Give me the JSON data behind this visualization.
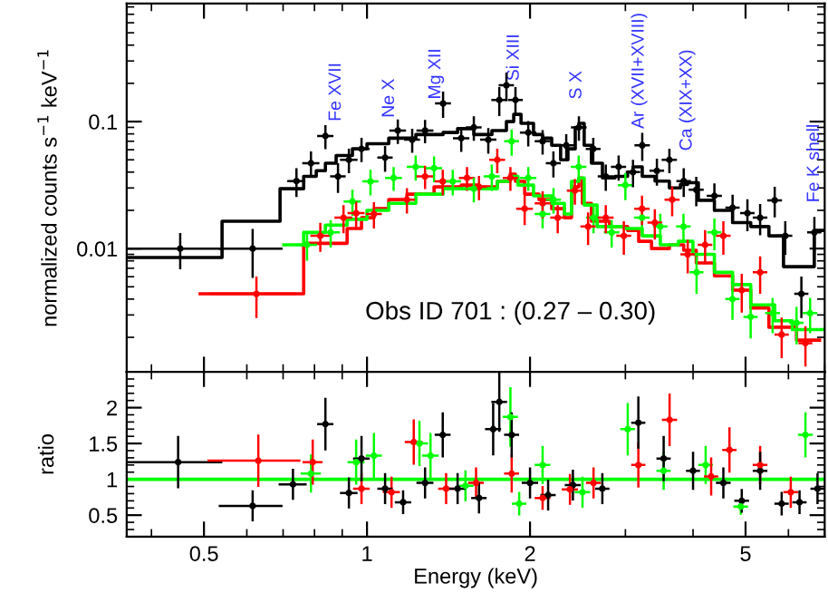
{
  "chart_data": [
    {
      "type": "scatter",
      "ylabel": "normalized counts s$^{−1}$ keV$^{−1}$",
      "log": "xy",
      "xlim": [
        0.36,
        7.0
      ],
      "xticks": [
        0.5,
        1,
        2,
        5
      ],
      "ylim": [
        0.00107,
        0.85
      ],
      "yticks": [
        0.01,
        0.1
      ],
      "tick_labels": "y",
      "marker": "none",
      "annotations": [
        "Fe XVII",
        "Ne X",
        "Mg XII",
        "Si XIII",
        "S X",
        "Ar (XVII+XVIII)",
        "Ca (XIX+XX)",
        "Fe K shell",
        "Obs ID 701 : (0.27 – 0.30)"
      ],
      "series": [
        {
          "type": "step",
          "color": "#000000",
          "x": [
            0.36,
            0.54,
            0.691,
            0.764,
            0.806,
            0.838,
            0.877,
            0.94,
            1.0,
            1.097,
            1.231,
            1.382,
            1.47,
            1.575,
            1.701,
            1.809,
            1.866,
            1.925,
            2.03,
            2.11,
            2.193,
            2.278,
            2.35,
            2.424,
            2.462,
            2.518,
            2.597,
            2.721,
            2.87,
            3.028,
            3.099,
            3.223,
            3.403,
            3.617,
            3.791,
            3.908,
            4.091,
            4.38,
            4.732,
            5.112,
            5.522,
            5.876,
            6.697,
            7.0
          ],
          "values": [
            0.0085,
            0.0164,
            0.0296,
            0.037,
            0.041,
            0.047,
            0.054,
            0.061,
            0.067,
            0.074,
            0.079,
            0.082,
            0.088,
            0.079,
            0.085,
            0.1,
            0.114,
            0.097,
            0.079,
            0.074,
            0.065,
            0.05,
            0.061,
            0.09,
            0.097,
            0.065,
            0.047,
            0.036,
            0.037,
            0.04,
            0.044,
            0.037,
            0.034,
            0.03,
            0.032,
            0.033,
            0.024,
            0.02,
            0.016,
            0.0149,
            0.0126,
            0.0072,
            0.0139,
            0.0139
          ]
        },
        {
          "type": "step",
          "color": "#ff0000",
          "x": [
            0.492,
            0.764,
            0.919,
            0.977,
            1.031,
            1.097,
            1.185,
            1.33,
            1.493,
            1.612,
            1.741,
            1.838,
            1.88,
            1.955,
            2.078,
            2.193,
            2.315,
            2.386,
            2.462,
            2.499,
            2.597,
            2.804,
            3.028,
            3.174,
            3.352,
            3.617,
            3.844,
            4.055,
            4.38,
            4.732,
            5.112,
            5.522,
            6.21,
            6.85
          ],
          "values": [
            0.0044,
            0.011,
            0.0144,
            0.0175,
            0.0206,
            0.0243,
            0.0268,
            0.0306,
            0.0316,
            0.0306,
            0.0338,
            0.0385,
            0.0338,
            0.0268,
            0.0243,
            0.0206,
            0.0175,
            0.0306,
            0.036,
            0.0227,
            0.0164,
            0.0149,
            0.0139,
            0.0114,
            0.01,
            0.0107,
            0.0097,
            0.0077,
            0.0061,
            0.0047,
            0.0034,
            0.0024,
            0.0019,
            0.0019
          ]
        },
        {
          "type": "step",
          "color": "#00ff00",
          "x": [
            0.702,
            0.764,
            0.838,
            0.919,
            1.0,
            1.097,
            1.231,
            1.382,
            1.55,
            1.741,
            1.838,
            1.9,
            2.03,
            2.193,
            2.315,
            2.386,
            2.462,
            2.518,
            2.66,
            2.982,
            3.223,
            3.48,
            3.757,
            3.998,
            4.38,
            4.732,
            5.112,
            5.66,
            6.1,
            7.0
          ],
          "values": [
            0.0107,
            0.0134,
            0.0153,
            0.017,
            0.02,
            0.0227,
            0.0268,
            0.0296,
            0.0296,
            0.0338,
            0.037,
            0.0316,
            0.026,
            0.0227,
            0.0187,
            0.0338,
            0.036,
            0.022,
            0.0149,
            0.0144,
            0.0126,
            0.0107,
            0.0114,
            0.009,
            0.0065,
            0.0052,
            0.0036,
            0.0027,
            0.0023,
            0.0023
          ]
        },
        {
          "color": "#000000",
          "x": [
            0.452,
            0.615,
            0.741,
            0.788,
            0.838,
            0.884,
            0.926,
            0.977,
            1.08,
            1.14,
            1.212,
            1.28,
            1.382,
            1.493,
            1.575,
            1.675,
            1.755,
            1.809,
            1.88,
            1.985,
            2.11,
            2.209,
            2.333,
            2.462,
            2.617,
            2.76,
            2.915,
            3.099,
            3.223,
            3.43,
            3.617,
            3.844,
            4.055,
            4.38,
            4.732,
            5.04,
            5.32,
            5.66,
            5.92,
            6.34,
            6.7
          ],
          "values": [
            0.01,
            0.01,
            0.034,
            0.047,
            0.077,
            0.037,
            0.05,
            0.061,
            0.052,
            0.085,
            0.072,
            0.085,
            0.139,
            0.074,
            0.09,
            0.072,
            0.148,
            0.193,
            0.148,
            0.082,
            0.07,
            0.047,
            0.065,
            0.09,
            0.061,
            0.037,
            0.044,
            0.04,
            0.065,
            0.041,
            0.05,
            0.034,
            0.029,
            0.026,
            0.021,
            0.019,
            0.0175,
            0.024,
            0.0126,
            0.0044,
            0.0134
          ],
          "errors": [
            0.003,
            0.004,
            0.008,
            0.01,
            0.015,
            0.009,
            0.01,
            0.012,
            0.011,
            0.017,
            0.014,
            0.016,
            0.03,
            0.015,
            0.018,
            0.015,
            0.035,
            0.045,
            0.035,
            0.017,
            0.014,
            0.01,
            0.013,
            0.018,
            0.012,
            0.008,
            0.009,
            0.009,
            0.015,
            0.009,
            0.01,
            0.008,
            0.007,
            0.006,
            0.005,
            0.005,
            0.0045,
            0.006,
            0.0035,
            0.0015,
            0.004
          ],
          "xerrors": [
            0.09,
            0.08,
            0.025,
            0.025,
            0.025,
            0.025,
            0.03,
            0.03,
            0.03,
            0.035,
            0.035,
            0.04,
            0.04,
            0.045,
            0.045,
            0.05,
            0.05,
            0.05,
            0.05,
            0.06,
            0.06,
            0.06,
            0.07,
            0.07,
            0.07,
            0.08,
            0.08,
            0.08,
            0.09,
            0.09,
            0.1,
            0.1,
            0.11,
            0.12,
            0.12,
            0.13,
            0.14,
            0.15,
            0.15,
            0.16,
            0.17
          ]
        },
        {
          "color": "#ff0000",
          "x": [
            0.625,
            0.82,
            0.905,
            0.955,
            1.03,
            1.185,
            1.28,
            1.38,
            1.53,
            1.61,
            1.74,
            1.84,
            1.955,
            2.11,
            2.25,
            2.42,
            2.56,
            2.76,
            2.98,
            3.22,
            3.4,
            3.66,
            3.91,
            4.21,
            4.55,
            4.92,
            5.32,
            5.83,
            6.45
          ],
          "values": [
            0.0044,
            0.0126,
            0.0175,
            0.019,
            0.0187,
            0.0243,
            0.037,
            0.0338,
            0.036,
            0.0306,
            0.05,
            0.036,
            0.0206,
            0.0227,
            0.0175,
            0.0286,
            0.0149,
            0.0175,
            0.0126,
            0.0206,
            0.016,
            0.0243,
            0.009,
            0.0107,
            0.0126,
            0.0047,
            0.0065,
            0.0021,
            0.0018
          ],
          "errors": [
            0.0015,
            0.003,
            0.004,
            0.004,
            0.004,
            0.005,
            0.007,
            0.007,
            0.007,
            0.006,
            0.01,
            0.007,
            0.005,
            0.005,
            0.004,
            0.006,
            0.004,
            0.004,
            0.0035,
            0.005,
            0.004,
            0.006,
            0.0025,
            0.003,
            0.0035,
            0.0015,
            0.002,
            0.0007,
            0.0006
          ],
          "xerrors": [
            0.11,
            0.03,
            0.03,
            0.03,
            0.03,
            0.035,
            0.04,
            0.04,
            0.045,
            0.045,
            0.05,
            0.05,
            0.06,
            0.06,
            0.06,
            0.07,
            0.07,
            0.08,
            0.08,
            0.09,
            0.09,
            0.1,
            0.1,
            0.11,
            0.12,
            0.13,
            0.14,
            0.15,
            0.16
          ]
        },
        {
          "color": "#00ff00",
          "x": [
            0.775,
            0.857,
            0.94,
            1.015,
            1.12,
            1.23,
            1.33,
            1.44,
            1.575,
            1.7,
            1.85,
            1.985,
            2.11,
            2.21,
            2.46,
            2.62,
            2.83,
            3.0,
            3.22,
            3.48,
            3.84,
            4.06,
            4.38,
            4.73,
            5.11,
            5.61,
            6.21,
            6.58
          ],
          "values": [
            0.0107,
            0.0134,
            0.0235,
            0.0338,
            0.036,
            0.044,
            0.043,
            0.0338,
            0.0296,
            0.037,
            0.07,
            0.036,
            0.0187,
            0.0243,
            0.044,
            0.0175,
            0.0134,
            0.0316,
            0.0175,
            0.0149,
            0.0149,
            0.0065,
            0.0134,
            0.004,
            0.0029,
            0.0031,
            0.0026,
            0.0031
          ],
          "errors": [
            0.0025,
            0.003,
            0.005,
            0.007,
            0.007,
            0.009,
            0.009,
            0.007,
            0.006,
            0.008,
            0.015,
            0.007,
            0.004,
            0.005,
            0.009,
            0.004,
            0.003,
            0.007,
            0.004,
            0.0035,
            0.0035,
            0.002,
            0.0035,
            0.0012,
            0.0009,
            0.0009,
            0.0008,
            0.0009
          ],
          "xerrors": [
            0.03,
            0.03,
            0.03,
            0.03,
            0.035,
            0.04,
            0.04,
            0.045,
            0.045,
            0.05,
            0.05,
            0.06,
            0.06,
            0.06,
            0.07,
            0.07,
            0.08,
            0.08,
            0.09,
            0.09,
            0.1,
            0.1,
            0.11,
            0.12,
            0.13,
            0.15,
            0.16,
            0.17
          ]
        }
      ]
    },
    {
      "type": "scatter",
      "xlabel": "Energy (keV)",
      "ylabel": "ratio",
      "log": "x",
      "xlim": [
        0.36,
        7.0
      ],
      "xticks": [
        0.5,
        1,
        2,
        5
      ],
      "ylim": [
        0.2,
        2.5
      ],
      "yticks": [
        0.5,
        1,
        1.5,
        2
      ],
      "marker": "none",
      "ref_lines": [
        {
          "axis": "y",
          "value": 1,
          "color": "#00ff00"
        }
      ],
      "series": [
        {
          "color": "#000000",
          "x": [
            0.448,
            0.615,
            0.73,
            0.838,
            0.926,
            0.977,
            1.08,
            1.166,
            1.28,
            1.38,
            1.47,
            1.61,
            1.71,
            1.755,
            1.85,
            2.0,
            2.16,
            2.4,
            2.72,
            3.17,
            3.53,
            4.0,
            4.55,
            4.92,
            5.32,
            5.83,
            6.29,
            6.79
          ],
          "values": [
            1.24,
            0.63,
            0.93,
            1.77,
            0.81,
            1.29,
            0.87,
            0.68,
            0.95,
            1.62,
            0.87,
            0.74,
            1.7,
            2.08,
            1.62,
            0.95,
            0.78,
            0.92,
            0.87,
            1.79,
            1.29,
            1.12,
            0.95,
            0.7,
            1.12,
            0.66,
            0.68,
            0.87
          ],
          "errors": [
            0.35,
            0.2,
            0.2,
            0.35,
            0.2,
            0.3,
            0.2,
            0.15,
            0.2,
            0.3,
            0.2,
            0.2,
            0.35,
            0.4,
            0.3,
            0.2,
            0.2,
            0.2,
            0.2,
            0.35,
            0.3,
            0.25,
            0.2,
            0.15,
            0.25,
            0.15,
            0.15,
            0.2
          ],
          "xerrors": [
            0.09,
            0.08,
            0.04,
            0.025,
            0.03,
            0.03,
            0.03,
            0.035,
            0.04,
            0.04,
            0.045,
            0.045,
            0.05,
            0.05,
            0.05,
            0.06,
            0.06,
            0.07,
            0.07,
            0.08,
            0.09,
            0.1,
            0.12,
            0.13,
            0.14,
            0.15,
            0.16,
            0.17
          ]
        },
        {
          "color": "#ff0000",
          "x": [
            0.63,
            0.794,
            0.977,
            1.11,
            1.22,
            1.4,
            1.59,
            1.85,
            2.11,
            2.37,
            2.62,
            3.17,
            3.62,
            4.32,
            4.67,
            5.32,
            6.06
          ],
          "values": [
            1.26,
            1.24,
            0.87,
            0.82,
            1.52,
            0.87,
            0.95,
            1.08,
            0.74,
            0.86,
            0.95,
            1.2,
            1.83,
            1.04,
            1.41,
            1.2,
            0.82
          ],
          "errors": [
            0.35,
            0.3,
            0.2,
            0.2,
            0.3,
            0.2,
            0.2,
            0.25,
            0.15,
            0.2,
            0.2,
            0.3,
            0.35,
            0.25,
            0.3,
            0.25,
            0.2
          ],
          "xerrors": [
            0.12,
            0.03,
            0.03,
            0.035,
            0.04,
            0.04,
            0.045,
            0.05,
            0.06,
            0.07,
            0.07,
            0.08,
            0.1,
            0.11,
            0.12,
            0.14,
            0.16
          ]
        },
        {
          "color": "#00ff00",
          "x": [
            0.788,
            0.955,
            1.03,
            1.25,
            1.31,
            1.52,
            1.84,
            1.91,
            2.11,
            2.5,
            3.03,
            3.53,
            4.22,
            4.9,
            6.45
          ],
          "values": [
            1.08,
            1.24,
            1.33,
            1.5,
            1.33,
            0.91,
            1.87,
            0.66,
            1.2,
            0.82,
            1.7,
            1.12,
            1.2,
            0.62,
            1.62
          ],
          "errors": [
            0.25,
            0.3,
            0.3,
            0.3,
            0.3,
            0.2,
            0.4,
            0.15,
            0.25,
            0.2,
            0.35,
            0.25,
            0.25,
            0.1,
            0.3
          ],
          "xerrors": [
            0.03,
            0.03,
            0.03,
            0.04,
            0.04,
            0.045,
            0.05,
            0.05,
            0.06,
            0.07,
            0.08,
            0.09,
            0.11,
            0.13,
            0.17
          ]
        }
      ]
    }
  ]
}
